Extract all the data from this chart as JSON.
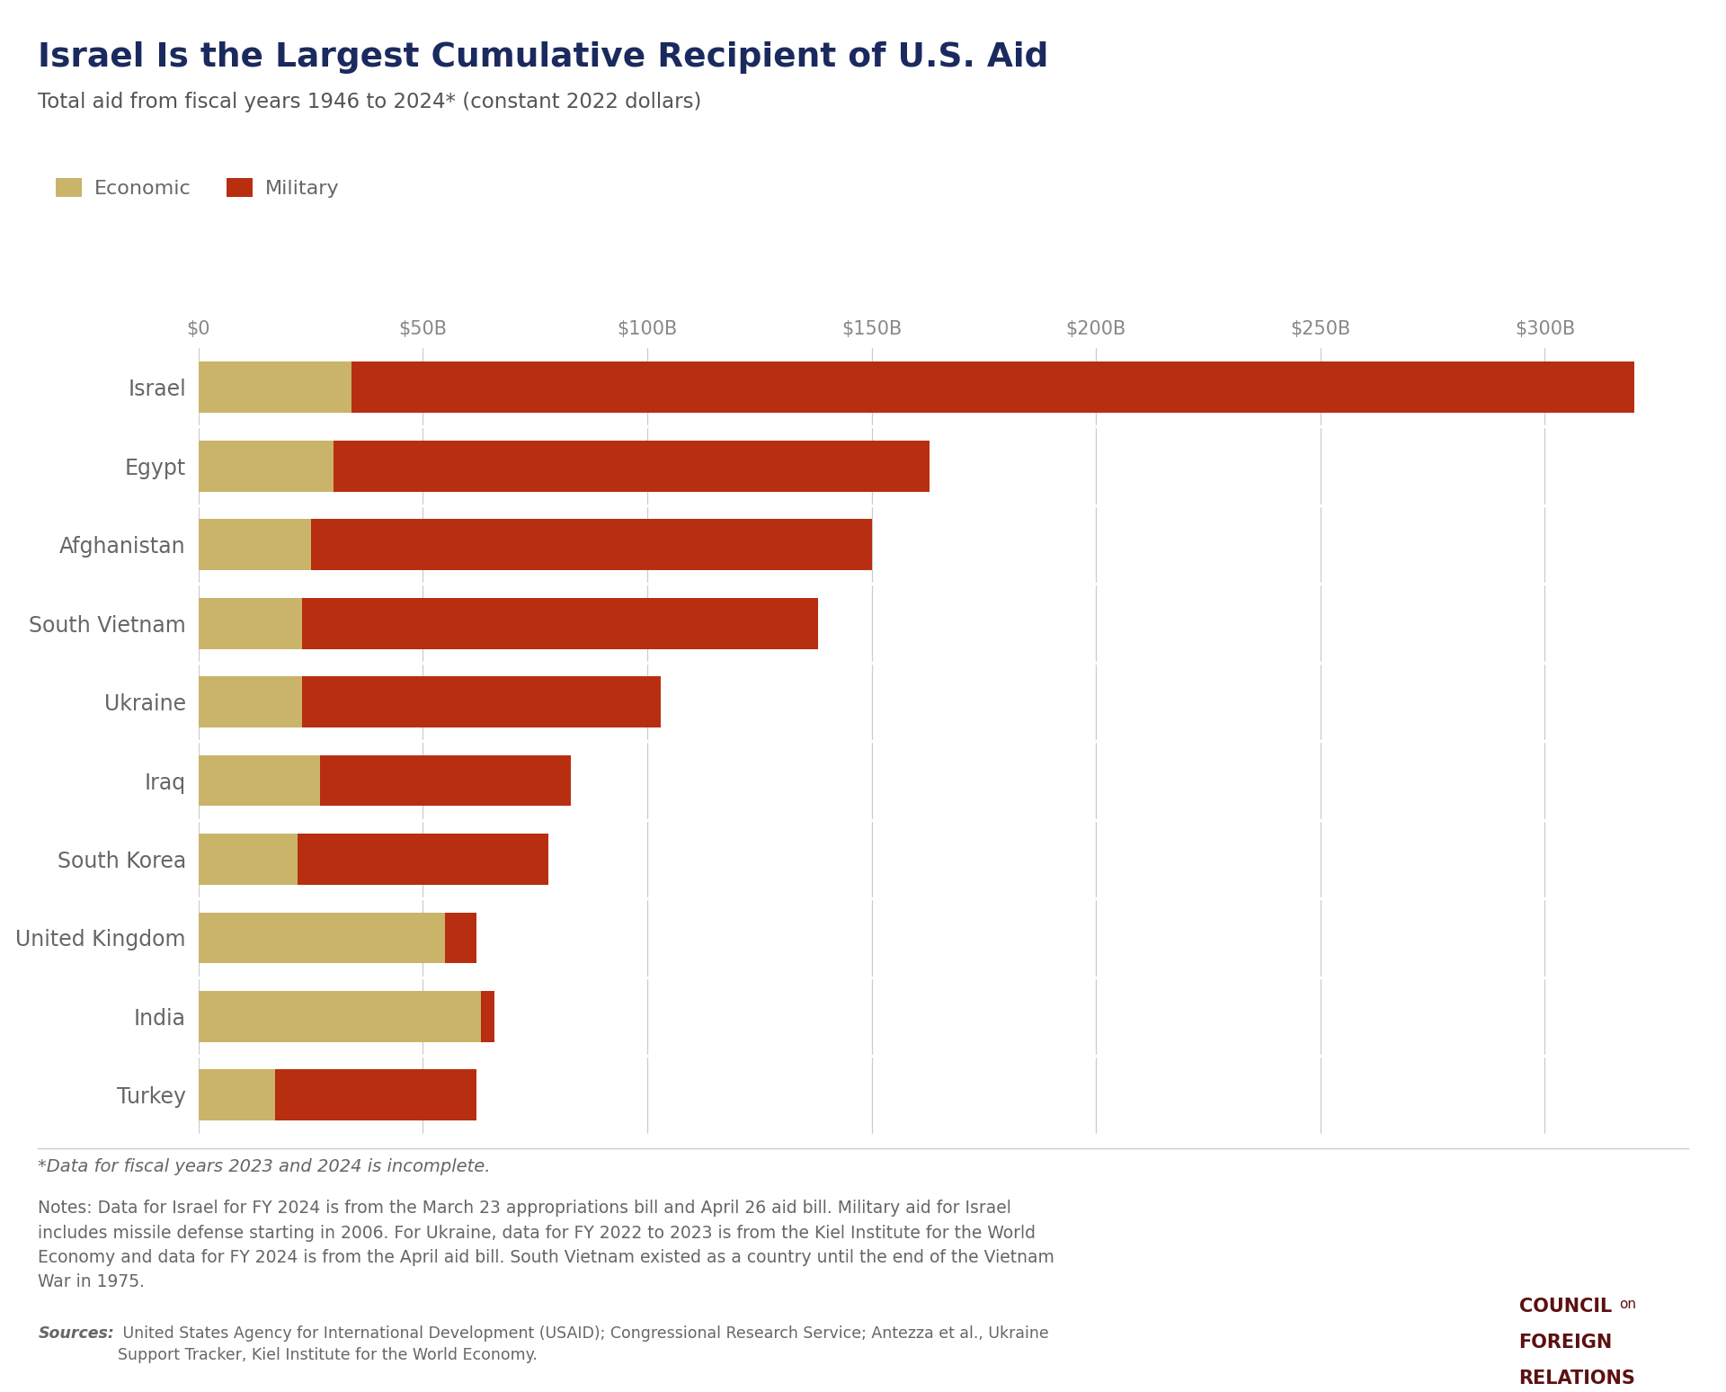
{
  "title": "Israel Is the Largest Cumulative Recipient of U.S. Aid",
  "subtitle": "Total aid from fiscal years 1946 to 2024* (constant 2022 dollars)",
  "countries": [
    "Israel",
    "Egypt",
    "Afghanistan",
    "South Vietnam",
    "Ukraine",
    "Iraq",
    "South Korea",
    "United Kingdom",
    "India",
    "Turkey"
  ],
  "economic": [
    34,
    30,
    25,
    23,
    23,
    27,
    22,
    55,
    63,
    17
  ],
  "military": [
    286,
    133,
    125,
    115,
    80,
    56,
    56,
    7,
    3,
    45
  ],
  "economic_color": "#C9B46A",
  "military_color": "#B82E10",
  "background_color": "#FFFFFF",
  "title_color": "#1B2A5E",
  "subtitle_color": "#555555",
  "label_color": "#666666",
  "tick_color": "#888888",
  "grid_color": "#CCCCCC",
  "xlim": [
    0,
    325
  ],
  "xticks": [
    0,
    50,
    100,
    150,
    200,
    250,
    300
  ],
  "xtick_labels": [
    "$0",
    "$50B",
    "$100B",
    "$150B",
    "$200B",
    "$250B",
    "$300B"
  ],
  "footnote1": "*Data for fiscal years 2023 and 2024 is incomplete.",
  "footnote2": "Notes: Data for Israel for FY 2024 is from the March 23 appropriations bill and April 26 aid bill. Military aid for Israel\nincludes missile defense starting in 2006. For Ukraine, data for FY 2022 to 2023 is from the Kiel Institute for the World\nEconomy and data for FY 2024 is from the April aid bill. South Vietnam existed as a country until the end of the Vietnam\nWar in 1975.",
  "sources_label": "Sources:",
  "sources_text": " United States Agency for International Development (USAID); Congressional Research Service; Antezza et al., Ukraine\nSupport Tracker, Kiel Institute for the World Economy.",
  "logo_color": "#5C1010"
}
